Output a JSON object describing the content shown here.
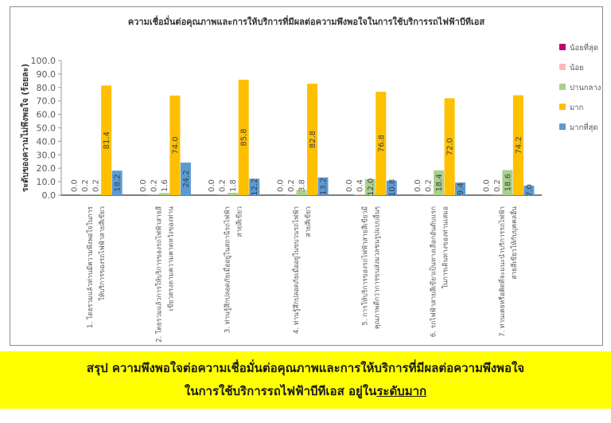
{
  "chart_data": {
    "type": "bar",
    "title": "ความเชื่อมั่นต่อคุณภาพและการให้บริการที่มีผลต่อความพึงพอใจในการใช้บริการรถไฟฟ้าบีทีเอส",
    "xlabel": "",
    "ylabel": "ระดับของความไม่พึงพอใจ (ร้อยละ)",
    "ylim": [
      0,
      100
    ],
    "yticks": [
      "0.0",
      "10.0",
      "20.0",
      "30.0",
      "40.0",
      "50.0",
      "60.0",
      "70.0",
      "80.0",
      "90.0",
      "100.0"
    ],
    "grid": false,
    "legend_position": "right",
    "categories": [
      [
        "1. โดยรวมแล้วท่านมีความพึงพอใจในการ",
        "ให้บริการของรถไฟฟ้าสายสีเขียว"
      ],
      [
        "2. โดยรวมแล้วการให้บริการของรถไฟฟ้าสายสี",
        "เขียวตรงตามความคาดหวังของท่าน"
      ],
      [
        "3. ท่านรู้สึกปลอดภัยเมื่ออยู่ในสถานีรถไฟฟ้า",
        "สายสีเขียว"
      ],
      [
        "4. ท่านรู้สึกปลอดภัยเมื่ออยู่ในขบวนรถไฟฟ้า",
        "สายสีเขียว"
      ],
      [
        "5. การให้บริการของรถไฟฟ้าสายสีเขียวมี",
        "คุณภาพดีกว่าการขนส่งมวลชนรูปแบบอื่นๆ"
      ],
      [
        "6. รถไฟฟ้าสายสีเขียวเป็นทางเลือกอันดับแรก",
        "ในการเดินทางของท่านเสมอ"
      ],
      [
        "7. ท่านเคยหรือคิดที่จะแนะนำบริการรถไฟฟ้า",
        "สายสีเขียวให้กับบุคคลอื่น"
      ]
    ],
    "series": [
      {
        "name": "น้อยที่สุด",
        "color": "#c0006a",
        "values": [
          0.0,
          0.0,
          0.0,
          0.0,
          0.0,
          0.0,
          0.0
        ]
      },
      {
        "name": "น้อย",
        "color": "#ffb8c0",
        "values": [
          0.2,
          0.2,
          0.2,
          0.2,
          0.4,
          0.2,
          0.2
        ]
      },
      {
        "name": "ปานกลาง",
        "color": "#a9d18e",
        "values": [
          0.2,
          1.6,
          1.8,
          3.8,
          12.0,
          18.4,
          18.6
        ]
      },
      {
        "name": "มาก",
        "color": "#ffc000",
        "values": [
          81.4,
          74.0,
          85.8,
          82.8,
          76.8,
          72.0,
          74.2
        ]
      },
      {
        "name": "มากที่สุด",
        "color": "#5b9bd5",
        "values": [
          18.2,
          24.2,
          12.2,
          13.2,
          10.8,
          9.4,
          7.0
        ]
      }
    ]
  },
  "summary": {
    "line1": "สรุป ความพึงพอใจต่อความเชื่อมั่นต่อคุณภาพและการให้บริการที่มีผลต่อความพึงพอใจ",
    "line2_prefix": "ในการใช้บริการรถไฟฟ้าบีทีเอส อยู่ใน",
    "line2_underlined": "ระดับมาก"
  }
}
